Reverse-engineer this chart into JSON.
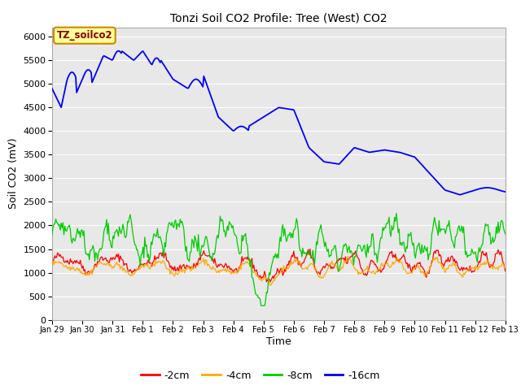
{
  "title": "Tonzi Soil CO2 Profile: Tree (West) CO2",
  "ylabel": "Soil CO2 (mV)",
  "xlabel": "Time",
  "legend_label": "TZ_soilco2",
  "ylim": [
    0,
    6200
  ],
  "series_labels": [
    "-2cm",
    "-4cm",
    "-8cm",
    "-16cm"
  ],
  "series_colors": [
    "#ff0000",
    "#ffaa00",
    "#00cc00",
    "#0000ff"
  ],
  "xtick_labels": [
    "Jan 29",
    "Jan 30",
    "Jan 31",
    "Feb 1",
    "Feb 2",
    "Feb 3",
    "Feb 4",
    "Feb 5",
    "Feb 6",
    "Feb 7",
    "Feb 8",
    "Feb 9",
    "Feb 10",
    "Feb 11",
    "Feb 12",
    "Feb 13"
  ],
  "bg_color": "#e8e8e8",
  "grid_color": "#ffffff",
  "box_facecolor": "#ffff99",
  "box_edgecolor": "#cc8800",
  "box_textcolor": "#880000",
  "fig_bgcolor": "#ffffff"
}
